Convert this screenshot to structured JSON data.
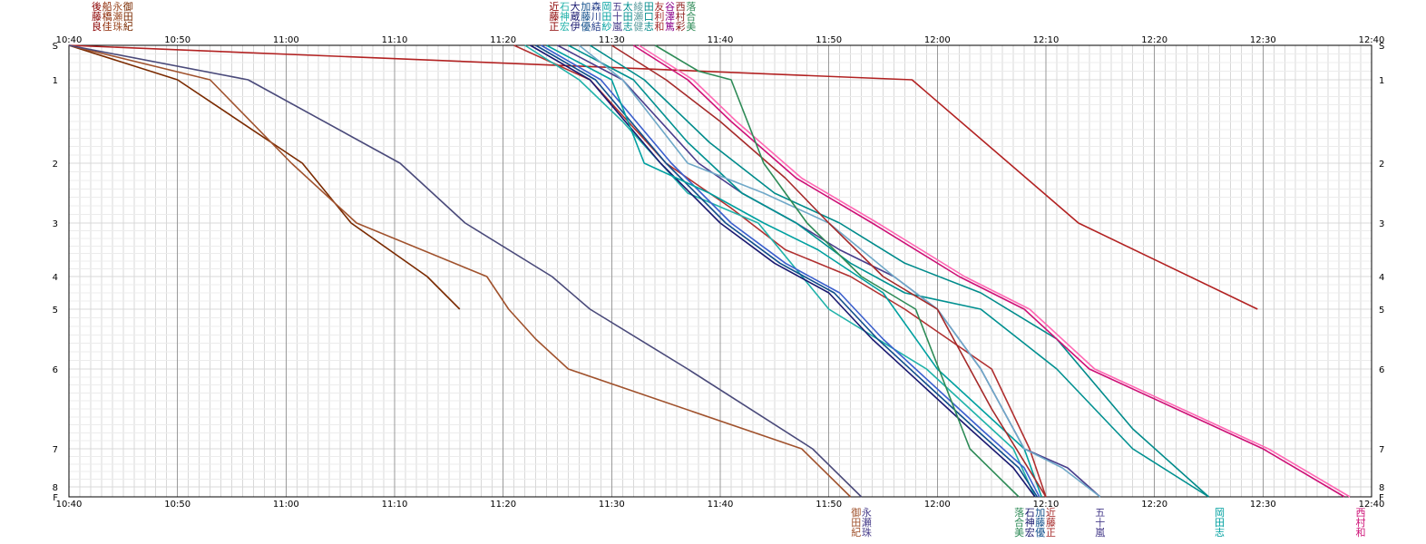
{
  "chart_data": {
    "type": "line",
    "title": "",
    "x_ticks": [
      "10:40",
      "10:50",
      "11:00",
      "11:10",
      "11:20",
      "11:30",
      "11:40",
      "11:50",
      "12:00",
      "12:10",
      "12:20",
      "12:30",
      "12:40"
    ],
    "xlim": [
      "10:40",
      "12:40"
    ],
    "y_ticks": [
      "S",
      "1",
      "2",
      "3",
      "4",
      "5",
      "6",
      "7",
      "8",
      "F"
    ],
    "y_axis_reversed": true,
    "grid": true,
    "minor_grid_minutes": 1,
    "colors": {
      "major_grid": "#9a9a9a",
      "minor_grid": "#d8d8d8",
      "axis": "#000000"
    },
    "top_name_groups": [
      {
        "at": "10:44",
        "columns": [
          {
            "lines": [
              "後",
              "藤",
              "良"
            ],
            "color": "#8b0000"
          },
          {
            "lines": [
              "船",
              "橋",
              "佳"
            ],
            "color": "#8b2500"
          },
          {
            "lines": [
              "永",
              "瀬",
              "珠"
            ],
            "color": "#a0522d"
          },
          {
            "lines": [
              "御",
              "田",
              "紀"
            ],
            "color": "#7a2a00"
          }
        ]
      },
      {
        "at": "11:31",
        "columns": [
          {
            "lines": [
              "近",
              "藤",
              "正"
            ],
            "color": "#8b0000"
          },
          {
            "lines": [
              "石",
              "神",
              "宏"
            ],
            "color": "#20b2aa"
          },
          {
            "lines": [
              "大",
              "蔵",
              "伊"
            ],
            "color": "#191970"
          },
          {
            "lines": [
              "加",
              "藤",
              "優"
            ],
            "color": "#104e8b"
          },
          {
            "lines": [
              "森",
              "川",
              "結"
            ],
            "color": "#27408b"
          },
          {
            "lines": [
              "岡",
              "田",
              "紗"
            ],
            "color": "#00a0a0"
          },
          {
            "lines": [
              "五",
              "十",
              "嵐"
            ],
            "color": "#483d8b"
          },
          {
            "lines": [
              "太",
              "田",
              "志"
            ],
            "color": "#009090"
          },
          {
            "lines": [
              "綾",
              "瀬",
              "健"
            ],
            "color": "#5f9ea0"
          },
          {
            "lines": [
              "田",
              "口",
              "志"
            ],
            "color": "#008b8b"
          },
          {
            "lines": [
              "友",
              "利",
              "和"
            ],
            "color": "#a52a2a"
          },
          {
            "lines": [
              "谷",
              "澤",
              "篤"
            ],
            "color": "#8b008b"
          },
          {
            "lines": [
              "西",
              "村",
              "彩"
            ],
            "color": "#8b1a1a"
          },
          {
            "lines": [
              "落",
              "合",
              "美"
            ],
            "color": "#2e8b57"
          }
        ]
      }
    ],
    "bottom_name_groups": [
      {
        "at": "11:53",
        "columns": [
          {
            "lines": [
              "御",
              "田",
              "紀"
            ],
            "color": "#a0522d"
          },
          {
            "lines": [
              "永",
              "瀬",
              "珠"
            ],
            "color": "#483d8b"
          }
        ]
      },
      {
        "at": "12:09",
        "columns": [
          {
            "lines": [
              "落",
              "合",
              "美"
            ],
            "color": "#2e8b57"
          },
          {
            "lines": [
              "石",
              "神",
              "宏"
            ],
            "color": "#191970"
          },
          {
            "lines": [
              "加",
              "藤",
              "優"
            ],
            "color": "#104e8b"
          },
          {
            "lines": [
              "近",
              "藤",
              "正"
            ],
            "color": "#a52a2a"
          }
        ]
      },
      {
        "at": "12:15",
        "columns": [
          {
            "lines": [
              "五",
              "十",
              "嵐"
            ],
            "color": "#483d8b"
          }
        ]
      },
      {
        "at": "12:26",
        "columns": [
          {
            "lines": [
              "岡",
              "田",
              "志"
            ],
            "color": "#00a0a0"
          }
        ]
      },
      {
        "at": "12:39",
        "columns": [
          {
            "lines": [
              "西",
              "村",
              "和"
            ],
            "color": "#cd1076"
          }
        ]
      }
    ],
    "series": [
      {
        "color": "#b22222",
        "x": [
          "10:40",
          "11:57:40",
          "12:13",
          "12:29:30"
        ],
        "y": [
          "S",
          "1",
          "3",
          "5"
        ]
      },
      {
        "color": "#7a2a00",
        "x": [
          "10:40",
          "10:50",
          "11:01:30",
          "11:06",
          "11:13",
          "11:16"
        ],
        "y": [
          "S",
          "1",
          "2",
          "3",
          "4",
          "5"
        ]
      },
      {
        "color": "#a0522d",
        "x": [
          "10:40",
          "10:53",
          "11:00.5",
          "11:06.5",
          "11:18.5",
          "11:20.5",
          "11:23",
          "11:26",
          "11:47.5",
          "11:52"
        ],
        "y": [
          "S",
          "1",
          "2",
          "3",
          "4",
          "5",
          "5.5",
          "6",
          "7",
          "F"
        ]
      },
      {
        "color": "#4a4a7a",
        "x": [
          "10:40",
          "10:56.5",
          "11:10.5",
          "11:16.5",
          "11:24.5",
          "11:28",
          "11:37",
          "11:48.5",
          "11:53"
        ],
        "y": [
          "S",
          "1",
          "2",
          "3",
          "4",
          "5",
          "6",
          "7",
          "F"
        ]
      },
      {
        "color": "#b03030",
        "x": [
          "11:21",
          "11:28",
          "11:35",
          "11:41",
          "11:46",
          "11:52",
          "11:57",
          "12:01",
          "12:05",
          "12:08.5",
          "12:10"
        ],
        "y": [
          "S",
          "1",
          "2",
          "2.75",
          "3.5",
          "4",
          "5",
          "5.5",
          "6",
          "7",
          "F"
        ]
      },
      {
        "color": "#20b2aa",
        "x": [
          "11:22",
          "11:27",
          "11:31",
          "11:37",
          "11:43.5",
          "11:50",
          "11:59",
          "12:07",
          "12:09"
        ],
        "y": [
          "S",
          "1",
          "1.5",
          "2.5",
          "3",
          "5",
          "6",
          "7",
          "F"
        ]
      },
      {
        "color": "#191970",
        "x": [
          "11:22.5",
          "11:28",
          "11:34.5",
          "11:40",
          "11:45",
          "11:50",
          "11:54",
          "11:59",
          "12:03",
          "12:07",
          "12:09"
        ],
        "y": [
          "S",
          "1",
          "2",
          "3",
          "3.75",
          "4.5",
          "5.5",
          "6.25",
          "6.75",
          "7.5",
          "F"
        ]
      },
      {
        "color": "#104e8b",
        "x": [
          "11:23",
          "11:28.5",
          "11:35",
          "11:40.5",
          "11:45.5",
          "11:50.5",
          "11:54.5",
          "11:59.5",
          "12:03.5",
          "12:07.5",
          "12:09.2"
        ],
        "y": [
          "S",
          "1",
          "2",
          "3",
          "3.75",
          "4.5",
          "5.5",
          "6.25",
          "6.75",
          "7.5",
          "F"
        ]
      },
      {
        "color": "#3a5fcd",
        "x": [
          "11:23.5",
          "11:29",
          "11:35.5",
          "11:41",
          "11:46",
          "11:51",
          "11:55",
          "12:00",
          "12:04",
          "12:08",
          "12:09.4"
        ],
        "y": [
          "S",
          "1",
          "2",
          "3",
          "3.75",
          "4.5",
          "5.5",
          "6.25",
          "6.75",
          "7.5",
          "F"
        ]
      },
      {
        "color": "#00a0a0",
        "x": [
          "11:24",
          "11:30",
          "11:33",
          "11:39",
          "11:44",
          "11:49",
          "11:55",
          "12:00",
          "12:08",
          "12:09.6"
        ],
        "y": [
          "S",
          "1",
          "2",
          "2.5",
          "3",
          "3.5",
          "4.5",
          "6",
          "7",
          "F"
        ]
      },
      {
        "color": "#483d8b",
        "x": [
          "11:25",
          "11:31",
          "11:38",
          "11:42",
          "11:47",
          "11:51",
          "11:56",
          "12:00",
          "12:04",
          "12:08",
          "12:12",
          "12:15"
        ],
        "y": [
          "S",
          "1",
          "2",
          "2.5",
          "3",
          "3.5",
          "4",
          "5",
          "6",
          "7",
          "7.5",
          "F"
        ]
      },
      {
        "color": "#009090",
        "x": [
          "11:26",
          "11:32",
          "11:37",
          "11:42",
          "11:47",
          "11:52",
          "11:57",
          "12:04",
          "12:11",
          "12:18",
          "12:25"
        ],
        "y": [
          "S",
          "1",
          "1.75",
          "2.5",
          "3",
          "3.75",
          "4.5",
          "5",
          "6",
          "7",
          "F"
        ]
      },
      {
        "color": "#6fa8c8",
        "x": [
          "11:27",
          "11:31",
          "11:37",
          "11:44",
          "11:50",
          "11:56",
          "12:00",
          "12:04",
          "12:08",
          "12:11.5",
          "12:15"
        ],
        "y": [
          "S",
          "1",
          "2",
          "2.5",
          "3",
          "4",
          "5",
          "6",
          "7",
          "7.5",
          "F"
        ]
      },
      {
        "color": "#008b8b",
        "x": [
          "11:28",
          "11:33",
          "11:39",
          "11:45",
          "11:51",
          "11:57",
          "12:04",
          "12:11",
          "12:18",
          "12:25"
        ],
        "y": [
          "S",
          "1",
          "1.75",
          "2.5",
          "3",
          "3.75",
          "4.5",
          "5.5",
          "6.75",
          "F"
        ]
      },
      {
        "color": "#a52a2a",
        "x": [
          "11:30",
          "11:35",
          "11:40",
          "11:46",
          "11:50",
          "11:55",
          "12:00",
          "12:05",
          "12:10"
        ],
        "y": [
          "S",
          "1",
          "1.5",
          "2.25",
          "3",
          "4",
          "5",
          "6.5",
          "F"
        ]
      },
      {
        "color": "#cd1076",
        "x": [
          "11:32",
          "11:37",
          "11:41",
          "11:47",
          "11:54",
          "12:02",
          "12:08",
          "12:14",
          "12:22",
          "12:30",
          "12:37.5"
        ],
        "y": [
          "S",
          "1",
          "1.5",
          "2.25",
          "3",
          "4",
          "5",
          "6",
          "6.5",
          "7",
          "F"
        ]
      },
      {
        "color": "#ff69b4",
        "x": [
          "11:32.5",
          "11:37.5",
          "11:41.5",
          "11:47.5",
          "11:54.5",
          "12:02.5",
          "12:08.5",
          "12:14.5",
          "12:22.5",
          "12:30.5",
          "12:38"
        ],
        "y": [
          "S",
          "1",
          "1.5",
          "2.25",
          "3",
          "4",
          "5",
          "6",
          "6.5",
          "7",
          "F"
        ]
      },
      {
        "color": "#2e8b57",
        "x": [
          "11:34",
          "11:38",
          "11:41",
          "11:44",
          "11:48",
          "11:53",
          "11:58",
          "12:03",
          "12:07.5"
        ],
        "y": [
          "S",
          "0.75",
          "1",
          "2",
          "3",
          "4",
          "5",
          "7",
          "F"
        ]
      }
    ]
  }
}
